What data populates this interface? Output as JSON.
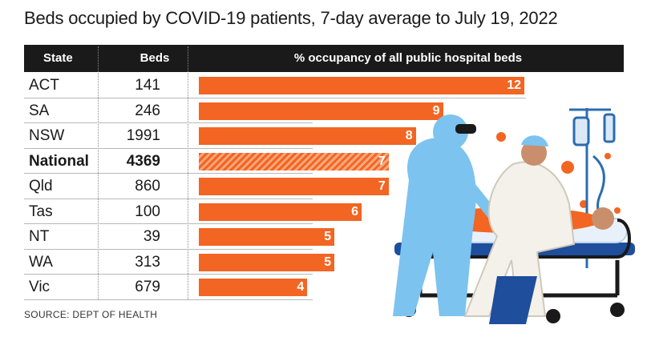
{
  "title": "Beds occupied by COVID-19 patients, 7-day average to July 19, 2022",
  "source": "SOURCE: DEPT OF HEALTH",
  "colors": {
    "bar": "#f26522",
    "header": "#1a1a1a"
  },
  "illustration": "healthcare-workers-with-patient-on-stretcher",
  "chart_data": {
    "type": "bar",
    "orientation": "horizontal",
    "columns": [
      "State",
      "Beds",
      "% occupancy of all public hospital beds"
    ],
    "categories": [
      "ACT",
      "SA",
      "NSW",
      "National",
      "Qld",
      "Tas",
      "NT",
      "WA",
      "Vic"
    ],
    "beds": [
      "141",
      "246",
      "1991",
      "4369",
      "860",
      "100",
      "39",
      "313",
      "679"
    ],
    "values": [
      12,
      9,
      8,
      7,
      7,
      6,
      5,
      5,
      4
    ],
    "value_labels": [
      "12",
      "9",
      "8",
      "7",
      "7",
      "6",
      "5",
      "5",
      "4"
    ],
    "highlight": "National",
    "xlim": [
      0,
      12
    ]
  }
}
